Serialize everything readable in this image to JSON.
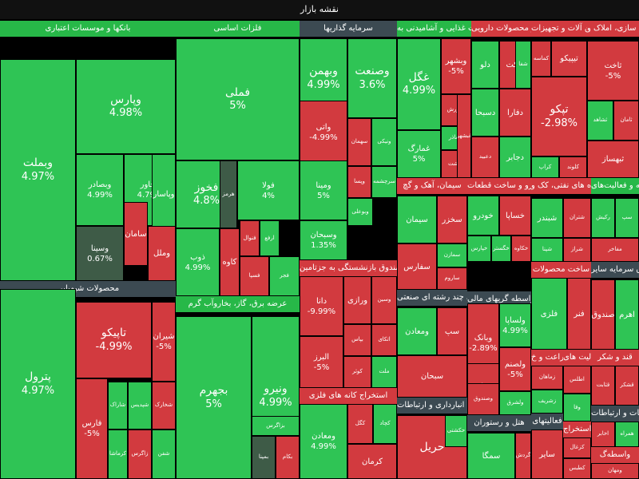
{
  "title": "نقشه بازار",
  "colors": {
    "strong_pos": "#27b848",
    "pos": "#2fc455",
    "neutral": "#3e5b47",
    "neg": "#d23a3f",
    "strong_neg": "#e02f37",
    "sector_head_green": "#27b848",
    "sector_head_red": "#d23a3f",
    "sector_head_dark": "#3c4a52"
  },
  "sectors": [
    {
      "id": "banks",
      "name": "بانکها و موسسات اعتباری",
      "head": "green",
      "tiles": [
        {
          "sym": "وبملت",
          "pct": "4.97%",
          "tone": "pos"
        },
        {
          "sym": "وپارس",
          "pct": "4.98%",
          "tone": "pos"
        },
        {
          "sym": "وتجارت",
          "pct": "4.98%",
          "tone": "pos"
        },
        {
          "sym": "وبصادر",
          "pct": "4.99%",
          "tone": "pos"
        },
        {
          "sym": "وخاور",
          "pct": "4.79%",
          "tone": "pos"
        },
        {
          "sym": "وسینا",
          "pct": "0.67%",
          "tone": "neutral"
        },
        {
          "sym": "وکار",
          "pct": "5%",
          "tone": "pos"
        },
        {
          "sym": "سامان",
          "pct": "",
          "tone": "neg"
        },
        {
          "sym": "وپاسار",
          "pct": "",
          "tone": "pos"
        },
        {
          "sym": "وملل",
          "pct": "",
          "tone": "neg"
        }
      ]
    },
    {
      "id": "basic_metals",
      "name": "فلزات اساسی",
      "head": "green",
      "tiles": [
        {
          "sym": "فملی",
          "pct": "5%",
          "tone": "pos"
        },
        {
          "sym": "فخوز",
          "pct": "4.8%",
          "tone": "pos"
        },
        {
          "sym": "فولا",
          "pct": "4%",
          "tone": "pos"
        },
        {
          "sym": "ذوب",
          "pct": "4.99%",
          "tone": "pos"
        },
        {
          "sym": "هرمز",
          "pct": "",
          "tone": "neutral"
        },
        {
          "sym": "کاوه",
          "pct": "",
          "tone": "neg"
        },
        {
          "sym": "فنوال",
          "pct": "",
          "tone": "neg"
        },
        {
          "sym": "ارفع",
          "pct": "",
          "tone": "pos"
        },
        {
          "sym": "فسپا",
          "pct": "",
          "tone": "neg"
        },
        {
          "sym": "فجر",
          "pct": "",
          "tone": "pos"
        }
      ]
    },
    {
      "id": "investment",
      "name": "سرمایه گذاریها",
      "head": "dark",
      "tiles": [
        {
          "sym": "وبهمن",
          "pct": "4.99%",
          "tone": "pos"
        },
        {
          "sym": "وصنعت",
          "pct": "3.6%",
          "tone": "pos"
        },
        {
          "sym": "واتی",
          "pct": "-4.99%",
          "tone": "neg"
        },
        {
          "sym": "ومینا",
          "pct": "5%",
          "tone": "pos"
        },
        {
          "sym": "وسبحان",
          "pct": "1.35%",
          "tone": "pos"
        },
        {
          "sym": "سهمان",
          "pct": "",
          "tone": "neg"
        },
        {
          "sym": "ونیکی",
          "pct": "",
          "tone": "pos"
        },
        {
          "sym": "وپسا",
          "pct": "",
          "tone": "neg"
        },
        {
          "sym": "سرچشمه",
          "pct": "",
          "tone": "pos"
        },
        {
          "sym": "وبوعلی",
          "pct": "",
          "tone": "pos"
        }
      ]
    },
    {
      "id": "insurance",
      "name": "بیمه وصندوق بازنشستگی به جزتامین",
      "head": "red",
      "tiles": [
        {
          "sym": "دانا",
          "pct": "-9.99%",
          "tone": "neg"
        },
        {
          "sym": "البرز",
          "pct": "-5%",
          "tone": "neg"
        },
        {
          "sym": "وسین",
          "pct": "",
          "tone": "neg"
        },
        {
          "sym": "ورازی",
          "pct": "",
          "tone": "neg"
        },
        {
          "sym": "بپاس",
          "pct": "",
          "tone": "neg"
        },
        {
          "sym": "کوثر",
          "pct": "",
          "tone": "neg"
        },
        {
          "sym": "اتکای",
          "pct": "",
          "tone": "neg"
        },
        {
          "sym": "ملت",
          "pct": "",
          "tone": "pos"
        }
      ]
    },
    {
      "id": "chemical",
      "name": "محصولات شیمیایی",
      "head": "dark",
      "tiles": [
        {
          "sym": "پترول",
          "pct": "4.97%",
          "tone": "pos"
        },
        {
          "sym": "تاپیکو",
          "pct": "-4.99%",
          "tone": "neg"
        },
        {
          "sym": "شیران",
          "pct": "-5%",
          "tone": "neg"
        },
        {
          "sym": "فارس",
          "pct": "-5%",
          "tone": "neg"
        },
        {
          "sym": "شاراک",
          "pct": "",
          "tone": "pos"
        },
        {
          "sym": "شپدیس",
          "pct": "",
          "tone": "pos"
        },
        {
          "sym": "شخارک",
          "pct": "",
          "tone": "neg"
        },
        {
          "sym": "کرماشا",
          "pct": "",
          "tone": "pos"
        },
        {
          "sym": "زاگرس",
          "pct": "",
          "tone": "neg"
        },
        {
          "sym": "شفن",
          "pct": "",
          "tone": "pos"
        }
      ]
    },
    {
      "id": "utilities",
      "name": "عرضه برق، گاز، بخاروآب گرم",
      "head": "green",
      "tiles": [
        {
          "sym": "بجهرم",
          "pct": "5%",
          "tone": "pos"
        },
        {
          "sym": "ونیرو",
          "pct": "4.99%",
          "tone": "pos"
        },
        {
          "sym": "بمپنا",
          "pct": "",
          "tone": "neutral"
        },
        {
          "sym": "بکام",
          "pct": "",
          "tone": "neg"
        },
        {
          "sym": "بزاگرس",
          "pct": "",
          "tone": "pos"
        }
      ]
    },
    {
      "id": "food",
      "name": "محصولات غذایی و آشامیدنی به",
      "head": "green",
      "tiles": [
        {
          "sym": "غگل",
          "pct": "4.99%",
          "tone": "pos"
        },
        {
          "sym": "غمارگ",
          "pct": "5%",
          "tone": "pos"
        },
        {
          "sym": "وبشهر",
          "pct": "-5%",
          "tone": "neg"
        },
        {
          "sym": "غکورش",
          "pct": "",
          "tone": "neg"
        },
        {
          "sym": "غشاذر",
          "pct": "",
          "tone": "pos"
        },
        {
          "sym": "غدشت",
          "pct": "",
          "tone": "neg"
        },
        {
          "sym": "غبشهر",
          "pct": "",
          "tone": "neg"
        }
      ]
    },
    {
      "id": "pharma",
      "name": "مواد و محصولات دارویی",
      "head": "red",
      "tiles": [
        {
          "sym": "دلو",
          "pct": "",
          "tone": "pos"
        },
        {
          "sym": "برکت",
          "pct": "",
          "tone": "neg"
        },
        {
          "sym": "شفا",
          "pct": "",
          "tone": "pos"
        },
        {
          "sym": "دسبحا",
          "pct": "",
          "tone": "pos"
        },
        {
          "sym": "دفارا",
          "pct": "",
          "tone": "neg"
        },
        {
          "sym": "دعبید",
          "pct": "",
          "tone": "neg"
        },
        {
          "sym": "دجابر",
          "pct": "",
          "tone": "pos"
        }
      ]
    },
    {
      "id": "machinery",
      "name": "ماشین آلات و تجهیزات",
      "head": "red",
      "tiles": [
        {
          "sym": "تپکو",
          "pct": "-2.98%",
          "tone": "neg"
        },
        {
          "sym": "کماسه",
          "pct": "",
          "tone": "neg"
        },
        {
          "sym": "تیپیکو",
          "pct": "",
          "tone": "neg"
        },
        {
          "sym": "کراپ",
          "pct": "",
          "tone": "pos"
        },
        {
          "sym": "کلوند",
          "pct": "",
          "tone": "neg"
        }
      ]
    },
    {
      "id": "real_estate",
      "name": "انبوه سازی، املاک و",
      "head": "red",
      "tiles": [
        {
          "sym": "ثاخت",
          "pct": "-5%",
          "tone": "neg"
        },
        {
          "sym": "ثشاهد",
          "pct": "",
          "tone": "pos"
        },
        {
          "sym": "ثامان",
          "pct": "",
          "tone": "neg"
        },
        {
          "sym": "ثبهساز",
          "pct": "",
          "tone": "neg"
        }
      ]
    },
    {
      "id": "cement",
      "name": "سیمان، آهک و گچ",
      "head": "red",
      "tiles": [
        {
          "sym": "سیمان",
          "pct": "",
          "tone": "pos"
        },
        {
          "sym": "سخزر",
          "pct": "",
          "tone": "neg"
        },
        {
          "sym": "سفارس",
          "pct": "",
          "tone": "neg"
        },
        {
          "sym": "سمازن",
          "pct": "",
          "tone": "pos"
        },
        {
          "sym": "ساروم",
          "pct": "",
          "tone": "neg"
        }
      ]
    },
    {
      "id": "auto",
      "name": "خودرو و ساخت قطعات",
      "head": "red",
      "tiles": [
        {
          "sym": "خودرو",
          "pct": "",
          "tone": "pos"
        },
        {
          "sym": "خساپا",
          "pct": "",
          "tone": "neg"
        },
        {
          "sym": "خپارس",
          "pct": "",
          "tone": "pos"
        },
        {
          "sym": "خگستر",
          "pct": "",
          "tone": "pos"
        },
        {
          "sym": "خکاوه",
          "pct": "",
          "tone": "neg"
        }
      ]
    },
    {
      "id": "oil_products",
      "name": "فراورده های نفتی، کک و",
      "head": "red",
      "tiles": [
        {
          "sym": "شبندر",
          "pct": "",
          "tone": "pos"
        },
        {
          "sym": "شتران",
          "pct": "",
          "tone": "neg"
        },
        {
          "sym": "شپنا",
          "pct": "",
          "tone": "pos"
        },
        {
          "sym": "شراز",
          "pct": "",
          "tone": "neg"
        }
      ]
    },
    {
      "id": "computer",
      "name": "رایانه و فعالیت‌های",
      "head": "green",
      "tiles": [
        {
          "sym": "رکیش",
          "pct": "",
          "tone": "pos"
        },
        {
          "sym": "سپ",
          "pct": "",
          "tone": "pos"
        },
        {
          "sym": "مفاخر",
          "pct": "",
          "tone": "neg"
        }
      ]
    },
    {
      "id": "multi_industry",
      "name": "شرکتهای چند رشته ای صنعتی",
      "head": "dark",
      "tiles": [
        {
          "sym": "ومعادن",
          "pct": "",
          "tone": "pos"
        },
        {
          "sym": "سپ",
          "pct": "",
          "tone": "neg"
        },
        {
          "sym": "سبحان",
          "pct": "",
          "tone": "neg"
        }
      ]
    },
    {
      "id": "financial_intermediation",
      "name": "سایر واسطه گریهای مالی",
      "head": "dark",
      "tiles": [
        {
          "sym": "وبانک",
          "pct": "-2.89%",
          "tone": "neg"
        },
        {
          "sym": "ومدیر",
          "pct": "-5%",
          "tone": "neg"
        },
        {
          "sym": "وصندوق",
          "pct": "",
          "tone": "neg"
        },
        {
          "sym": "ولساپا",
          "pct": "4.99%",
          "tone": "pos"
        },
        {
          "sym": "ولصنم",
          "pct": "-5%",
          "tone": "neg"
        },
        {
          "sym": "ولشرق",
          "pct": "",
          "tone": "pos"
        }
      ]
    },
    {
      "id": "ores",
      "name": "استخراج کانه های فلزی",
      "head": "red",
      "tiles": [
        {
          "sym": "ومعادن",
          "pct": "4.99%",
          "tone": "pos"
        },
        {
          "sym": "کگل",
          "pct": "",
          "tone": "neg"
        },
        {
          "sym": "کچاد",
          "pct": "",
          "tone": "pos"
        },
        {
          "sym": "کرمان",
          "pct": "",
          "tone": "neg"
        }
      ]
    },
    {
      "id": "transport",
      "name": "حمل ونقل، انبارداری و ارتباطات",
      "head": "dark",
      "tiles": [
        {
          "sym": "حریل",
          "pct": "",
          "tone": "neg"
        },
        {
          "sym": "حکشتی",
          "pct": "",
          "tone": "pos"
        }
      ]
    },
    {
      "id": "hotels",
      "name": "هتل و رستوران",
      "head": "dark",
      "tiles": [
        {
          "sym": "سمگا",
          "pct": "",
          "tone": "pos"
        },
        {
          "sym": "گردش",
          "pct": "",
          "tone": "neg"
        }
      ]
    },
    {
      "id": "construction",
      "name": "ساخت محصولات",
      "head": "red",
      "tiles": [
        {
          "sym": "فلزی",
          "pct": "",
          "tone": "pos"
        },
        {
          "sym": "فنر",
          "pct": "",
          "tone": "neg"
        }
      ]
    },
    {
      "id": "fund",
      "name": "صندوق سرمایه سایر",
      "head": "dark",
      "tiles": [
        {
          "sym": "صندوق",
          "pct": "",
          "tone": "neg"
        },
        {
          "sym": "اهرم",
          "pct": "",
          "tone": "pos"
        }
      ]
    },
    {
      "id": "agri",
      "name": "زراعت و خ",
      "head": "red",
      "tiles": [
        {
          "sym": "زماهان",
          "pct": "",
          "tone": "neg"
        },
        {
          "sym": "زشریف",
          "pct": "",
          "tone": "pos"
        }
      ]
    },
    {
      "id": "sugar",
      "name": "قند و شکر",
      "head": "red",
      "tiles": [
        {
          "sym": "قثابت",
          "pct": "",
          "tone": "neg"
        },
        {
          "sym": "قشکر",
          "pct": "",
          "tone": "neg"
        }
      ]
    },
    {
      "id": "activity",
      "name": "فعالیت های",
      "head": "red",
      "tiles": [
        {
          "sym": "اطلس",
          "pct": "",
          "tone": "neg"
        },
        {
          "sym": "وفا",
          "pct": "",
          "tone": "pos"
        }
      ]
    },
    {
      "id": "stockbroker",
      "name": "اطلاعات و ارتباطات",
      "head": "dark",
      "tiles": [
        {
          "sym": "اخابر",
          "pct": "",
          "tone": "neg"
        },
        {
          "sym": "همراه",
          "pct": "",
          "tone": "pos"
        }
      ]
    },
    {
      "id": "other_services",
      "name": "فعالیتهای",
      "head": "dark",
      "tiles": [
        {
          "sym": "سایر",
          "pct": "",
          "tone": "neg"
        }
      ]
    },
    {
      "id": "extraction",
      "name": "استخراج",
      "head": "red",
      "tiles": [
        {
          "sym": "کزغال",
          "pct": "",
          "tone": "neg"
        },
        {
          "sym": "کطبس",
          "pct": "",
          "tone": "neg"
        }
      ]
    },
    {
      "id": "mortgage",
      "name": "واسطه‌گ",
      "head": "red",
      "tiles": [
        {
          "sym": "ومهان",
          "pct": "",
          "tone": "neg"
        }
      ]
    }
  ]
}
